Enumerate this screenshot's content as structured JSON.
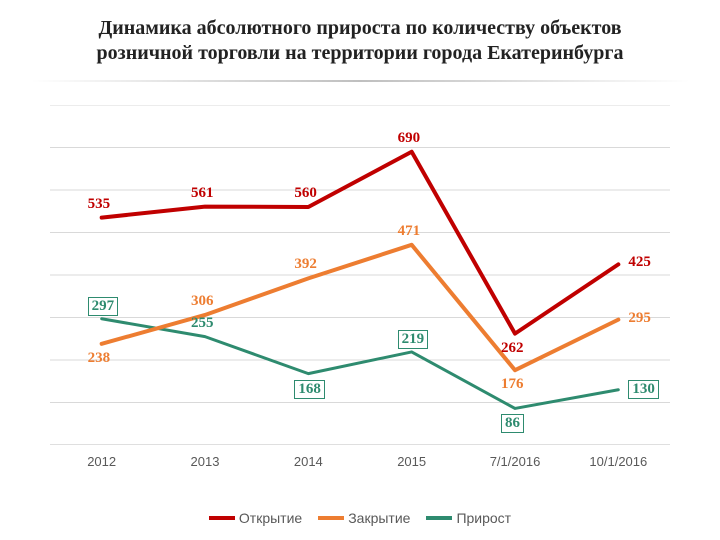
{
  "title": "Динамика абсолютного прироста по количеству объектов розничной торговли  на территории города Екатеринбурга",
  "chart": {
    "type": "line",
    "background_color": "#ffffff",
    "grid_color": "#d9d9d9",
    "axis_line_color": "#bfbfbf",
    "categories": [
      "2012",
      "2013",
      "2014",
      "2015",
      "7/1/2016",
      "10/1/2016"
    ],
    "ymin": 0,
    "ymax": 800,
    "gridlines": [
      0,
      100,
      200,
      300,
      400,
      500,
      600,
      700,
      800
    ],
    "xlabel_fontsize": 13,
    "title_fontsize": 20,
    "series": [
      {
        "name": "Открытие",
        "color": "#c00000",
        "stroke_width": 4,
        "values": [
          535,
          561,
          560,
          690,
          262,
          425
        ],
        "label_style": [
          "plain",
          "plain",
          "plain",
          "plain",
          "plain",
          "plain"
        ],
        "label_pos": [
          "above",
          "above",
          "above",
          "above",
          "below",
          "right"
        ]
      },
      {
        "name": "Закрытие",
        "color": "#ed7d31",
        "stroke_width": 4,
        "values": [
          238,
          306,
          392,
          471,
          176,
          295
        ],
        "label_style": [
          "plain",
          "plain",
          "plain",
          "plain",
          "plain",
          "plain"
        ],
        "label_pos": [
          "below",
          "above",
          "above",
          "above",
          "below",
          "right"
        ]
      },
      {
        "name": "Прирост",
        "color": "#2e8b6f",
        "stroke_width": 3,
        "values": [
          297,
          255,
          168,
          219,
          86,
          130
        ],
        "label_style": [
          "boxed",
          "plain",
          "boxed",
          "boxed",
          "boxed",
          "boxed"
        ],
        "label_pos": [
          "above",
          "above",
          "below",
          "above",
          "below",
          "right"
        ]
      }
    ],
    "legend_position": "bottom"
  }
}
